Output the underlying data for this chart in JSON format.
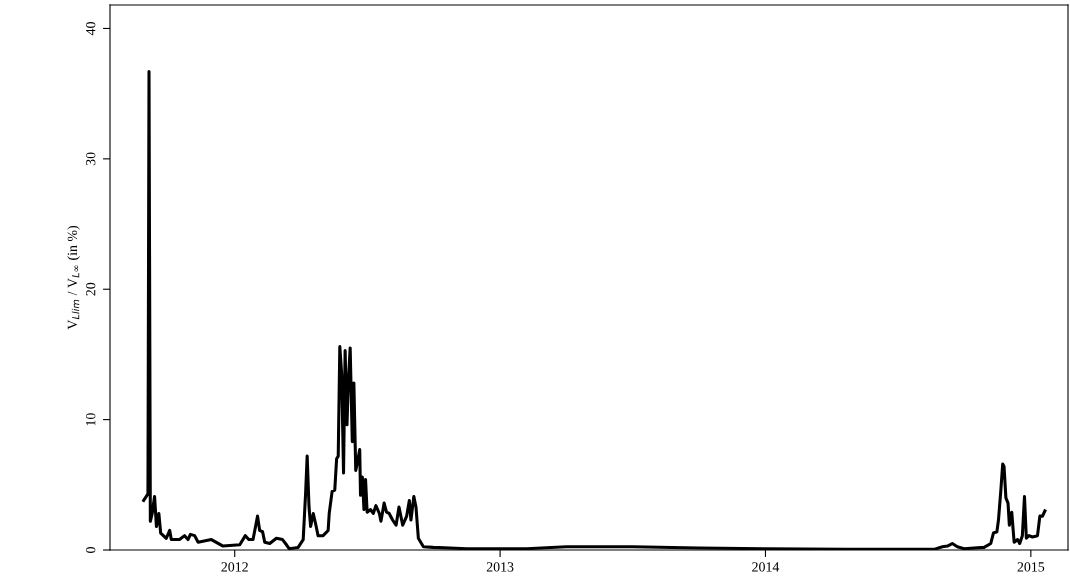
{
  "chart_data": {
    "type": "line",
    "ylabel": "V$_{Llim}$ / V$_{L∞}$ (in %)",
    "xlim": [
      2011.53,
      2015.14
    ],
    "xticks": [
      2012,
      2013,
      2014,
      2015
    ],
    "ylim": [
      0,
      41.8
    ],
    "yticks": [
      0,
      10,
      20,
      30,
      40
    ],
    "grid": false,
    "marker": "none",
    "line_style": "solid",
    "series": [
      {
        "color": "#000000",
        "x": [
          2011.657,
          2011.673,
          2011.677,
          2011.682,
          2011.689,
          2011.698,
          2011.705,
          2011.714,
          2011.721,
          2011.742,
          2011.755,
          2011.761,
          2011.792,
          2011.811,
          2011.824,
          2011.833,
          2011.849,
          2011.862,
          2011.912,
          2011.956,
          2012.019,
          2012.04,
          2012.053,
          2012.069,
          2012.086,
          2012.094,
          2012.105,
          2012.113,
          2012.132,
          2012.157,
          2012.18,
          2012.195,
          2012.205,
          2012.239,
          2012.258,
          2012.267,
          2012.273,
          2012.28,
          2012.286,
          2012.296,
          2012.306,
          2012.314,
          2012.333,
          2012.352,
          2012.356,
          2012.367,
          2012.377,
          2012.384,
          2012.39,
          2012.396,
          2012.403,
          2012.41,
          2012.416,
          2012.423,
          2012.428,
          2012.435,
          2012.443,
          2012.449,
          2012.456,
          2012.463,
          2012.471,
          2012.474,
          2012.481,
          2012.487,
          2012.493,
          2012.499,
          2012.512,
          2012.522,
          2012.532,
          2012.545,
          2012.551,
          2012.563,
          2012.572,
          2012.582,
          2012.595,
          2012.608,
          2012.619,
          2012.633,
          2012.648,
          2012.658,
          2012.664,
          2012.675,
          2012.683,
          2012.692,
          2012.711,
          2012.748,
          2012.874,
          2013.0,
          2013.1,
          2013.25,
          2013.5,
          2013.75,
          2014.0,
          2014.3,
          2014.635,
          2014.667,
          2014.686,
          2014.704,
          2014.723,
          2014.748,
          2014.824,
          2014.849,
          2014.859,
          2014.872,
          2014.878,
          2014.887,
          2014.894,
          2014.899,
          2014.906,
          2014.914,
          2014.919,
          2014.928,
          2014.937,
          2014.95,
          2014.958,
          2014.968,
          2014.976,
          2014.983,
          2014.993,
          2015.006,
          2015.025,
          2015.034,
          2015.044,
          2015.053
        ],
        "values": [
          3.8,
          4.3,
          36.7,
          2.2,
          2.8,
          4.1,
          1.8,
          2.8,
          1.3,
          0.9,
          1.5,
          0.8,
          0.8,
          1.1,
          0.8,
          1.2,
          1.1,
          0.6,
          0.8,
          0.3,
          0.4,
          1.1,
          0.8,
          0.8,
          2.6,
          1.5,
          1.4,
          0.6,
          0.5,
          0.9,
          0.8,
          0.4,
          0.1,
          0.2,
          0.8,
          4.3,
          7.2,
          3.3,
          1.8,
          2.8,
          1.9,
          1.1,
          1.1,
          1.5,
          2.8,
          4.5,
          4.6,
          7.0,
          7.2,
          15.6,
          13.5,
          5.9,
          15.3,
          9.6,
          12.8,
          15.5,
          8.3,
          12.8,
          6.1,
          6.8,
          7.7,
          4.2,
          5.6,
          3.1,
          5.4,
          2.9,
          3.1,
          2.8,
          3.4,
          2.8,
          2.2,
          3.6,
          2.9,
          2.8,
          2.3,
          1.9,
          3.3,
          1.9,
          2.6,
          3.8,
          2.3,
          4.1,
          3.3,
          0.9,
          0.25,
          0.2,
          0.1,
          0.1,
          0.1,
          0.25,
          0.25,
          0.15,
          0.1,
          0.05,
          0.05,
          0.25,
          0.3,
          0.5,
          0.25,
          0.1,
          0.2,
          0.5,
          1.3,
          1.4,
          2.3,
          4.6,
          6.6,
          6.4,
          4.0,
          3.6,
          1.9,
          2.9,
          0.6,
          0.8,
          0.5,
          1.1,
          4.1,
          0.9,
          1.1,
          1.0,
          1.1,
          2.6,
          2.6,
          3.0
        ]
      }
    ]
  }
}
